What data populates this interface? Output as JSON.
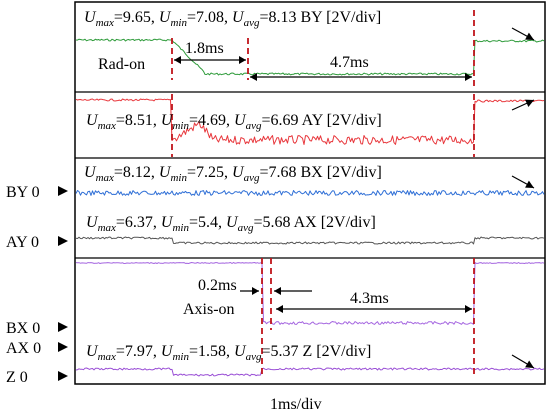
{
  "chart_data": {
    "type": "line",
    "x_scale": "1ms/div",
    "channel_labels": [
      {
        "name": "BY",
        "level": "0"
      },
      {
        "name": "AY",
        "level": "0"
      },
      {
        "name": "BX",
        "level": "0"
      },
      {
        "name": "AX",
        "level": "0"
      },
      {
        "name": "Z",
        "level": "0"
      }
    ],
    "traces": [
      {
        "id": "BY",
        "color": "#2e9b3a",
        "scale": "BY [2V/div]",
        "umax": "9.65",
        "umin": "7.08",
        "uavg": "8.13"
      },
      {
        "id": "AY",
        "color": "#e8383d",
        "scale": "AY [2V/div]",
        "umax": "8.51",
        "umin": "4.69",
        "uavg": "6.69"
      },
      {
        "id": "BX",
        "color": "#2f6fd6",
        "scale": "BX [2V/div]",
        "umax": "8.12",
        "umin": "7.25",
        "uavg": "7.68"
      },
      {
        "id": "AX",
        "color": "#555555",
        "scale": "AX [2V/div]",
        "umax": "6.37",
        "umin": "5.4",
        "uavg": "5.68"
      },
      {
        "id": "BX-lower",
        "color": "#a566e0",
        "scale": "",
        "umax": "",
        "umin": "",
        "uavg": ""
      },
      {
        "id": "Z",
        "color": "#9a4fd6",
        "scale": "Z [2V/div]",
        "umax": "7.97",
        "umin": "1.58",
        "uavg": "5.37"
      }
    ],
    "annotations": {
      "rad_on": "Rad-on",
      "axis_on": "Axis-on",
      "t1": "1.8ms",
      "t2": "4.7ms",
      "t3": "0.2ms",
      "t4": "4.3ms"
    },
    "marker_color": "#c0141b"
  }
}
